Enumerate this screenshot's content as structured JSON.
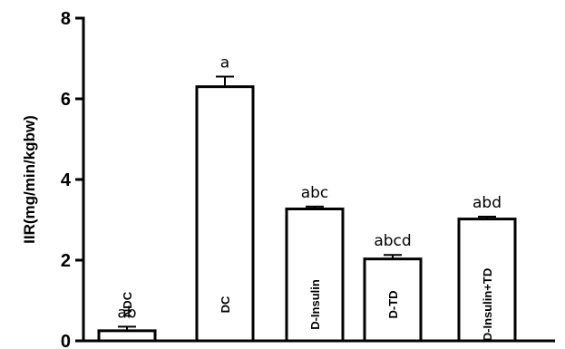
{
  "chart_data": {
    "type": "bar",
    "title": "",
    "xlabel": "",
    "ylabel": "IIR(mg/min/kgbw)",
    "ylim": [
      0,
      8
    ],
    "yticks": [
      0,
      2,
      4,
      6,
      8
    ],
    "grid": false,
    "categories": [
      "NDC",
      "DC",
      "D-Insulin",
      "D-TD",
      "D-Insulin+TD"
    ],
    "values": [
      0.25,
      6.3,
      3.27,
      2.03,
      3.02
    ],
    "errors": [
      0.1,
      0.25,
      0.06,
      0.1,
      0.06
    ],
    "significance_labels": [
      "ab",
      "a",
      "abc",
      "abcd",
      "abd"
    ],
    "colors": {
      "bar_fill": "#ffffff",
      "bar_stroke": "#000000",
      "axis": "#000000"
    }
  }
}
